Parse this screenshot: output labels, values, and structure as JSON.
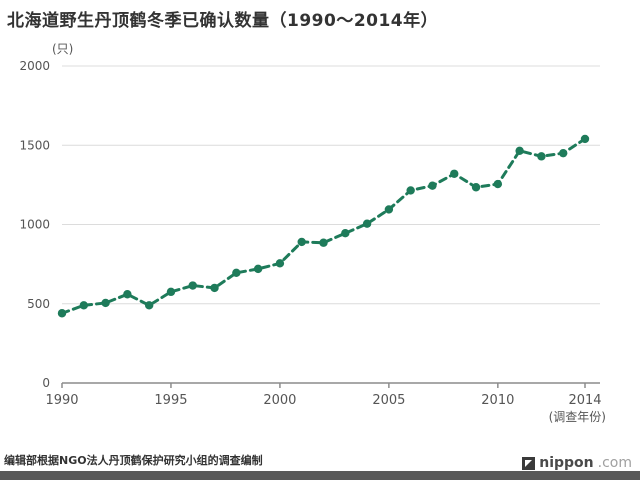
{
  "title": "北海道野生丹顶鹤冬季已确认数量（1990～2014年）",
  "y_unit_label": "(只)",
  "x_axis_note": "(调查年份)",
  "footer": {
    "source_text": "编辑部根据NGO法人丹顶鹤保护研究小组的调查编制",
    "logo_text_main": "nippon",
    "logo_text_suffix": ".com"
  },
  "colors": {
    "line": "#1e7b5a",
    "title": "#333333",
    "grid": "#dcdcdc",
    "axis": "#8c8c8c",
    "tick_label": "#555555",
    "footer_bar": "#595959"
  },
  "chart_data": {
    "type": "line",
    "title": "北海道野生丹顶鹤冬季已确认数量（1990～2014年）",
    "xlabel": "(调查年份)",
    "ylabel": "(只)",
    "line_style": "dashed",
    "marker": "circle",
    "grid": "horizontal",
    "legend_position": "none",
    "ylim": [
      0,
      2000
    ],
    "y_ticks": [
      0,
      500,
      1000,
      1500,
      2000
    ],
    "x_ticks": [
      1990,
      1995,
      2000,
      2005,
      2010,
      2014
    ],
    "x": [
      1990,
      1991,
      1992,
      1993,
      1994,
      1995,
      1996,
      1997,
      1998,
      1999,
      2000,
      2001,
      2002,
      2003,
      2004,
      2005,
      2006,
      2007,
      2008,
      2009,
      2010,
      2011,
      2012,
      2013,
      2014
    ],
    "values": [
      440,
      490,
      505,
      560,
      490,
      575,
      615,
      600,
      695,
      720,
      755,
      890,
      885,
      945,
      1005,
      1095,
      1215,
      1245,
      1320,
      1235,
      1255,
      1465,
      1430,
      1450,
      1540
    ]
  }
}
